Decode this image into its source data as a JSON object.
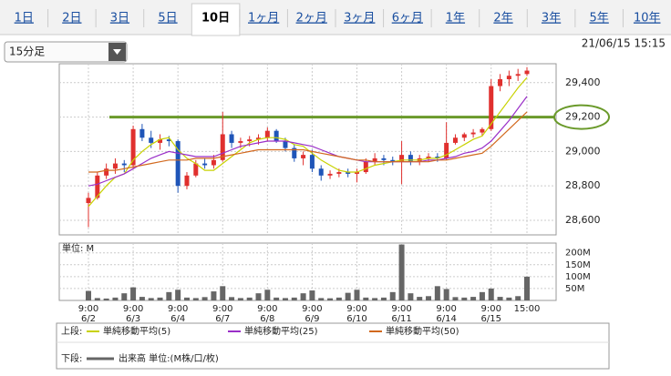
{
  "tabs": {
    "items": [
      "1日",
      "2日",
      "3日",
      "5日",
      "10日",
      "1ヶ月",
      "2ヶ月",
      "3ヶ月",
      "6ヶ月",
      "1年",
      "2年",
      "3年",
      "5年",
      "10年"
    ],
    "active": "10日"
  },
  "interval": "15分足",
  "timestamp": "21/06/15 15:15",
  "chart_data": [
    {
      "type": "candlestick",
      "categories": [
        "9:00",
        null,
        null,
        null,
        null,
        "9:00",
        null,
        null,
        null,
        null,
        "9:00",
        null,
        null,
        null,
        null,
        "9:00",
        null,
        null,
        null,
        null,
        "9:00",
        null,
        null,
        null,
        null,
        "9:00",
        null,
        null,
        null,
        null,
        "9:00",
        null,
        null,
        null,
        null,
        "9:00",
        null,
        null,
        null,
        null,
        "9:00",
        null,
        null,
        null,
        null,
        "9:00",
        null,
        null,
        null,
        "15:00"
      ],
      "dates": [
        "6/2",
        null,
        null,
        null,
        null,
        "6/3",
        null,
        null,
        null,
        null,
        "6/4",
        null,
        null,
        null,
        null,
        "6/7",
        null,
        null,
        null,
        null,
        "6/8",
        null,
        null,
        null,
        null,
        "6/9",
        null,
        null,
        null,
        null,
        "6/10",
        null,
        null,
        null,
        null,
        "6/11",
        null,
        null,
        null,
        null,
        "6/14",
        null,
        null,
        null,
        null,
        "6/15",
        null,
        null,
        null,
        null
      ],
      "open": [
        28700,
        28730,
        28860,
        28900,
        28930,
        28920,
        29130,
        29080,
        29050,
        29070,
        29060,
        28800,
        28860,
        28930,
        28920,
        28950,
        29100,
        29050,
        29060,
        29070,
        29080,
        29120,
        29060,
        29020,
        28960,
        28980,
        28900,
        28860,
        28870,
        28880,
        28870,
        28880,
        28940,
        28960,
        28950,
        28940,
        28980,
        28940,
        28960,
        28970,
        28960,
        29050,
        29080,
        29100,
        29110,
        29130,
        29380,
        29420,
        29440,
        29450
      ],
      "high": [
        28760,
        28880,
        28930,
        28960,
        28950,
        29150,
        29160,
        29120,
        29100,
        29090,
        29070,
        28880,
        28950,
        28960,
        28980,
        29230,
        29120,
        29080,
        29090,
        29100,
        29140,
        29130,
        29080,
        29040,
        29000,
        29010,
        28920,
        28890,
        28900,
        28900,
        28900,
        28960,
        28990,
        28980,
        28970,
        29060,
        29000,
        28980,
        28990,
        28990,
        29170,
        29100,
        29110,
        29130,
        29140,
        29420,
        29450,
        29470,
        29480,
        29490
      ],
      "low": [
        28560,
        28720,
        28840,
        28870,
        28880,
        28900,
        29060,
        29020,
        29010,
        29030,
        28760,
        28780,
        28850,
        28900,
        28900,
        28940,
        29020,
        29020,
        29030,
        29040,
        29060,
        29050,
        29000,
        28940,
        28920,
        28880,
        28830,
        28840,
        28850,
        28850,
        28820,
        28870,
        28920,
        28920,
        28920,
        28810,
        28920,
        28920,
        28940,
        28940,
        28950,
        29040,
        29060,
        29080,
        29090,
        29120,
        29350,
        29380,
        29410,
        29440
      ],
      "close": [
        28730,
        28860,
        28900,
        28930,
        28920,
        29130,
        29080,
        29050,
        29070,
        29060,
        28800,
        28860,
        28930,
        28920,
        28950,
        29100,
        29050,
        29060,
        29070,
        29080,
        29120,
        29060,
        29020,
        28960,
        28980,
        28900,
        28860,
        28870,
        28880,
        28870,
        28880,
        28940,
        28960,
        28950,
        28940,
        28980,
        28940,
        28960,
        28970,
        28960,
        29050,
        29080,
        29100,
        29110,
        29130,
        29380,
        29420,
        29440,
        29450,
        29470
      ],
      "up_color": "#e0302e",
      "down_color": "#1f55b8",
      "series": [
        {
          "name": "単純移動平均(5)",
          "color": "#c8d200",
          "values": [
            28680,
            28740,
            28800,
            28850,
            28870,
            28950,
            29000,
            29040,
            29070,
            29080,
            29010,
            28960,
            28930,
            28890,
            28890,
            28930,
            28970,
            29010,
            29050,
            29070,
            29080,
            29080,
            29070,
            29040,
            29030,
            28990,
            28950,
            28920,
            28890,
            28880,
            28880,
            28900,
            28920,
            28930,
            28940,
            28950,
            28950,
            28950,
            28960,
            28960,
            28980,
            29010,
            29040,
            29070,
            29090,
            29160,
            29230,
            29300,
            29370,
            29430
          ]
        },
        {
          "name": "単純移動平均(25)",
          "color": "#9a2fc8",
          "values": [
            28800,
            28810,
            28830,
            28850,
            28870,
            28900,
            28930,
            28960,
            28980,
            29000,
            28990,
            28980,
            28970,
            28970,
            28970,
            28990,
            29010,
            29030,
            29040,
            29050,
            29060,
            29060,
            29060,
            29050,
            29040,
            29030,
            29010,
            28990,
            28970,
            28960,
            28950,
            28940,
            28940,
            28940,
            28940,
            28940,
            28940,
            28940,
            28950,
            28950,
            28960,
            28970,
            28990,
            29000,
            29020,
            29060,
            29120,
            29180,
            29250,
            29320
          ]
        },
        {
          "name": "単純移動平均(50)",
          "color": "#d2691e",
          "values": [
            28880,
            28880,
            28890,
            28890,
            28900,
            28910,
            28920,
            28930,
            28940,
            28950,
            28950,
            28950,
            28960,
            28960,
            28960,
            28970,
            28980,
            28990,
            29000,
            29010,
            29010,
            29010,
            29010,
            29010,
            29010,
            29000,
            28990,
            28980,
            28970,
            28960,
            28950,
            28950,
            28940,
            28940,
            28940,
            28940,
            28940,
            28940,
            28940,
            28950,
            28950,
            28960,
            28970,
            28980,
            28990,
            29030,
            29080,
            29130,
            29180,
            29230
          ]
        }
      ],
      "ylim": [
        28515,
        29510
      ],
      "yticks": [
        {
          "value": 28600,
          "label": "28,600"
        },
        {
          "value": 28800,
          "label": "28,800"
        },
        {
          "value": 29000,
          "label": "29,000"
        },
        {
          "value": 29200,
          "label": "29,200"
        },
        {
          "value": 29400,
          "label": "29,400"
        }
      ],
      "reference_tick": 3,
      "reference_color": "#6a9a2a",
      "grid": true
    },
    {
      "type": "bar",
      "title": "単位: M",
      "series_name": "出来高 単位:(M株/口/枚)",
      "color": "#666666",
      "values": [
        40,
        10,
        8,
        12,
        30,
        55,
        15,
        10,
        12,
        35,
        45,
        12,
        10,
        14,
        38,
        60,
        14,
        10,
        12,
        30,
        45,
        12,
        10,
        12,
        30,
        42,
        10,
        9,
        12,
        32,
        45,
        12,
        10,
        12,
        35,
        235,
        30,
        15,
        18,
        60,
        48,
        14,
        12,
        15,
        35,
        50,
        15,
        12,
        18,
        100
      ],
      "ylim": [
        0,
        241
      ],
      "yticks": [
        {
          "value": 50,
          "label": "50M"
        },
        {
          "value": 100,
          "label": "100M"
        },
        {
          "value": 150,
          "label": "150M"
        },
        {
          "value": 200,
          "label": "200M"
        }
      ],
      "grid": true
    }
  ],
  "legend": {
    "upper": "上段:",
    "lower": "下段:"
  }
}
